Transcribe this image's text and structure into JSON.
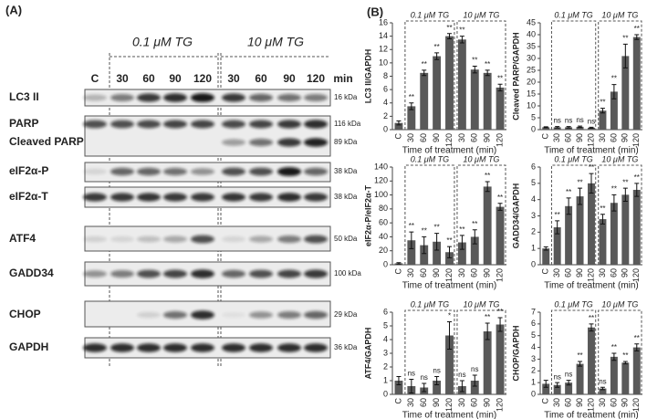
{
  "panel_a": {
    "label": "(A)",
    "groups": [
      "0.1 μM TG",
      "10 μM TG"
    ],
    "lanes": [
      "C",
      "30",
      "60",
      "90",
      "120",
      "30",
      "60",
      "90",
      "120"
    ],
    "unit": "min",
    "blots": [
      {
        "names": [
          "LC3 II"
        ],
        "sizes": [
          "16 kDa"
        ]
      },
      {
        "names": [
          "PARP",
          "Cleaved PARP"
        ],
        "sizes": [
          "116 kDa",
          "89 kDa"
        ]
      },
      {
        "names": [
          "eIF2α-P"
        ],
        "sizes": [
          "38 kDa"
        ]
      },
      {
        "names": [
          "eIF2α-T"
        ],
        "sizes": [
          "38 kDa"
        ]
      },
      {
        "names": [
          "ATF4"
        ],
        "sizes": [
          "50 kDa"
        ]
      },
      {
        "names": [
          "GADD34"
        ],
        "sizes": [
          "100 kDa"
        ]
      },
      {
        "names": [
          "CHOP"
        ],
        "sizes": [
          "29 kDa"
        ]
      },
      {
        "names": [
          "GAPDH"
        ],
        "sizes": [
          "36 kDa"
        ]
      }
    ]
  },
  "panel_b": {
    "label": "(B)"
  },
  "chart_data": [
    {
      "type": "bar",
      "ylabel": "LC3 II/GAPDH",
      "xlabel": "Time of treatment (min)",
      "groups": [
        "0.1 μM TG",
        "10 μM TG"
      ],
      "categories": [
        "C",
        "30",
        "60",
        "90",
        "120",
        "30",
        "60",
        "90",
        "120"
      ],
      "color": "#595959",
      "values": [
        1,
        3.5,
        8.5,
        11,
        14,
        13.5,
        9,
        8.5,
        6.3
      ],
      "errors": [
        0.3,
        0.5,
        0.4,
        0.5,
        0.4,
        0.5,
        0.5,
        0.4,
        0.5
      ],
      "annotations": [
        null,
        "**",
        "**",
        "**",
        "**",
        "**",
        "**",
        "**",
        "**"
      ],
      "ylim": [
        0,
        16
      ],
      "yticks": [
        0,
        2,
        4,
        6,
        8,
        10,
        12,
        14,
        16
      ]
    },
    {
      "type": "bar",
      "ylabel": "Cleaved PARP/GAPDH",
      "xlabel": "Time of treatment (min)",
      "groups": [
        "0.1 μM TG",
        "10 μM TG"
      ],
      "categories": [
        "C",
        "30",
        "60",
        "90",
        "120",
        "30",
        "60",
        "90",
        "120"
      ],
      "color": "#595959",
      "values": [
        1,
        1,
        1,
        1.2,
        0.8,
        8,
        16,
        31,
        39
      ],
      "errors": [
        0.2,
        0.3,
        0.3,
        0.3,
        0.2,
        1,
        3,
        5,
        1
      ],
      "annotations": [
        null,
        "ns",
        "ns",
        "ns",
        "ns",
        "**",
        "**",
        "**",
        "**"
      ],
      "ylim": [
        0,
        45
      ],
      "yticks": [
        0,
        5,
        10,
        15,
        20,
        25,
        30,
        35,
        40,
        45
      ]
    },
    {
      "type": "bar",
      "ylabel": "eIF2α-P/eIF2α-T",
      "xlabel": "Time of treatment (min)",
      "groups": [
        "0.1 μM TG",
        "10 μM TG"
      ],
      "categories": [
        "C",
        "30",
        "60",
        "90",
        "120",
        "30",
        "60",
        "90",
        "120"
      ],
      "color": "#595959",
      "values": [
        2,
        35,
        28,
        33,
        18,
        32,
        40,
        112,
        83
      ],
      "errors": [
        1,
        12,
        12,
        12,
        8,
        10,
        10,
        7,
        5
      ],
      "annotations": [
        null,
        "**",
        "**",
        "**",
        "**",
        "**",
        "**",
        "**",
        "**"
      ],
      "ylim": [
        0,
        140
      ],
      "yticks": [
        0,
        20,
        40,
        60,
        80,
        100,
        120,
        140
      ]
    },
    {
      "type": "bar",
      "ylabel": "GADD34/GAPDH",
      "xlabel": "Time of treatment (min)",
      "groups": [
        "0.1 μM TG",
        "10 μM TG"
      ],
      "categories": [
        "C",
        "30",
        "60",
        "90",
        "120",
        "30",
        "60",
        "90",
        "120"
      ],
      "color": "#595959",
      "values": [
        1,
        2.3,
        3.6,
        4.2,
        5,
        2.8,
        3.8,
        4.3,
        4.6
      ],
      "errors": [
        0.1,
        0.4,
        0.5,
        0.5,
        0.6,
        0.3,
        0.5,
        0.4,
        0.4
      ],
      "annotations": [
        null,
        "**",
        "**",
        "**",
        "**",
        "**",
        "**",
        "**",
        "**"
      ],
      "ylim": [
        0,
        6
      ],
      "yticks": [
        0,
        1,
        2,
        3,
        4,
        5,
        6
      ]
    },
    {
      "type": "bar",
      "ylabel": "ATF4/GAPDH",
      "xlabel": "Time of treatment (min)",
      "groups": [
        "0.1 μM TG",
        "10 μM TG"
      ],
      "categories": [
        "C",
        "30",
        "60",
        "90",
        "120",
        "30",
        "60",
        "90",
        "120"
      ],
      "color": "#595959",
      "values": [
        1,
        0.6,
        0.5,
        1,
        4.3,
        0.6,
        1,
        4.6,
        5.1
      ],
      "errors": [
        0.3,
        0.5,
        0.3,
        0.3,
        1,
        0.4,
        0.4,
        0.6,
        0.5
      ],
      "annotations": [
        null,
        "ns",
        "ns",
        "ns",
        "*",
        "ns",
        "ns",
        "**",
        "**"
      ],
      "ylim": [
        0,
        6
      ],
      "yticks": [
        0,
        1,
        2,
        3,
        4,
        5,
        6
      ]
    },
    {
      "type": "bar",
      "ylabel": "CHOP/GAPDH",
      "xlabel": "Time of treatment (min)",
      "groups": [
        "0.1 μM TG",
        "10 μM TG"
      ],
      "categories": [
        "C",
        "30",
        "60",
        "90",
        "120",
        "30",
        "60",
        "90",
        "120"
      ],
      "color": "#595959",
      "values": [
        0.9,
        0.8,
        1,
        2.6,
        5.7,
        0.5,
        3.2,
        2.7,
        4
      ],
      "errors": [
        0.3,
        0.2,
        0.2,
        0.2,
        0.3,
        0.1,
        0.3,
        0.1,
        0.3
      ],
      "annotations": [
        null,
        "ns",
        "ns",
        "**",
        "**",
        "ns",
        "**",
        "**",
        "**"
      ],
      "ylim": [
        0,
        7
      ],
      "yticks": [
        0,
        1,
        2,
        3,
        4,
        5,
        6,
        7
      ]
    }
  ]
}
